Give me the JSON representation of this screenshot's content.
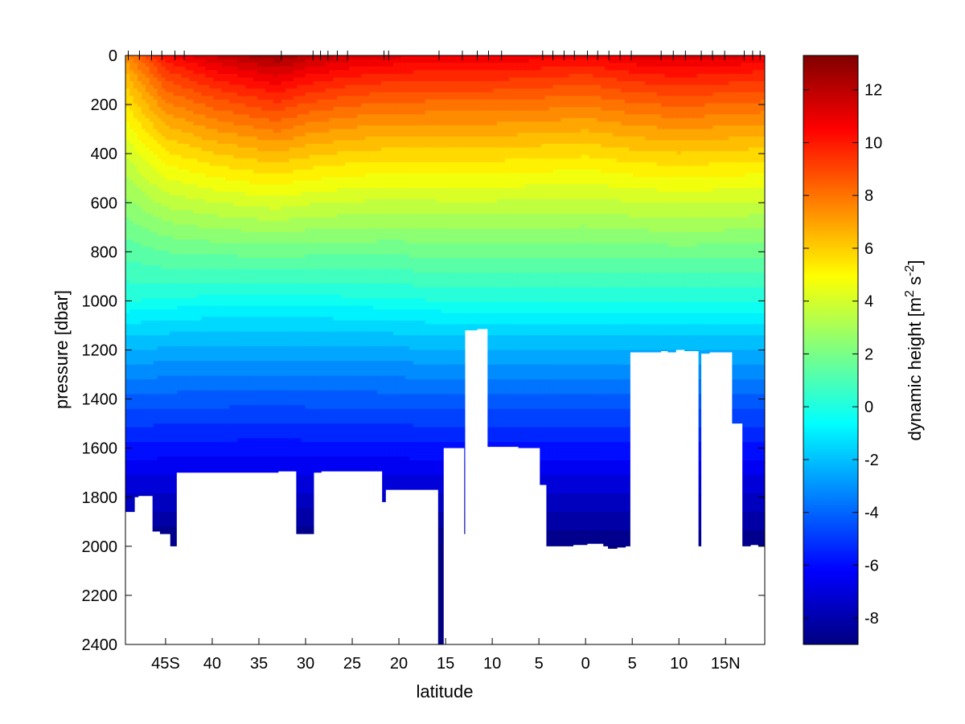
{
  "chart_data": {
    "type": "heatmap",
    "subtype": "filled-contour-section",
    "title": "",
    "xlabel": "latitude",
    "ylabel": "pressure [dbar]",
    "colorbar_label_prefix": "dynamic height [m",
    "colorbar_label_sup1": "2",
    "colorbar_label_mid": " s",
    "colorbar_label_sup2": "-2",
    "colorbar_label_suffix": "]",
    "colormap": "jet",
    "colormap_stops": [
      "#00008f",
      "#0000ff",
      "#00ffff",
      "#ffff00",
      "#ff0000",
      "#800000"
    ],
    "background_mask_color": "#ffffff",
    "x_signed_range": [
      -49.3,
      19.2
    ],
    "y_range": [
      0,
      2400
    ],
    "y_reversed": true,
    "clim": [
      -9,
      13.3
    ],
    "x_ticks": [
      {
        "value": -45,
        "label": "45S"
      },
      {
        "value": -40,
        "label": "40"
      },
      {
        "value": -35,
        "label": "35"
      },
      {
        "value": -30,
        "label": "30"
      },
      {
        "value": -25,
        "label": "25"
      },
      {
        "value": -20,
        "label": "20"
      },
      {
        "value": -15,
        "label": "15"
      },
      {
        "value": -10,
        "label": "10"
      },
      {
        "value": -5,
        "label": "5"
      },
      {
        "value": 0,
        "label": "0"
      },
      {
        "value": 5,
        "label": "5"
      },
      {
        "value": 10,
        "label": "10"
      },
      {
        "value": 15,
        "label": "15N"
      }
    ],
    "y_ticks": [
      {
        "value": 0,
        "label": "0"
      },
      {
        "value": 200,
        "label": "200"
      },
      {
        "value": 400,
        "label": "400"
      },
      {
        "value": 600,
        "label": "600"
      },
      {
        "value": 800,
        "label": "800"
      },
      {
        "value": 1000,
        "label": "1000"
      },
      {
        "value": 1200,
        "label": "1200"
      },
      {
        "value": 1400,
        "label": "1400"
      },
      {
        "value": 1600,
        "label": "1600"
      },
      {
        "value": 1800,
        "label": "1800"
      },
      {
        "value": 2000,
        "label": "2000"
      },
      {
        "value": 2200,
        "label": "2200"
      },
      {
        "value": 2400,
        "label": "2400"
      }
    ],
    "colorbar_ticks": [
      {
        "value": 12,
        "label": "12"
      },
      {
        "value": 10,
        "label": "10"
      },
      {
        "value": 8,
        "label": "8"
      },
      {
        "value": 6,
        "label": "6"
      },
      {
        "value": 4,
        "label": "4"
      },
      {
        "value": 2,
        "label": "2"
      },
      {
        "value": 0,
        "label": "0"
      },
      {
        "value": -2,
        "label": "-2"
      },
      {
        "value": -4,
        "label": "-4"
      },
      {
        "value": -6,
        "label": "-6"
      },
      {
        "value": -8,
        "label": "-8"
      }
    ],
    "station_latitudes": [
      -49,
      -47.8,
      -46.5,
      -45.4,
      -44,
      -43,
      -32.6,
      -29.2,
      -28.4,
      -27.6,
      -26.6,
      -25.5,
      -21.6,
      -21.1,
      -15.7,
      -13.2,
      -11.6,
      -10.4,
      -9,
      -4.6,
      -3.5,
      -2.3,
      -1.2,
      0.2,
      1.3,
      2.5,
      3.7,
      4.9,
      8.1,
      9.4,
      10.7,
      12.4,
      13.6,
      14.9,
      17,
      17.9,
      18.7
    ],
    "surface_anomaly": {
      "latitudes": [
        -49.3,
        -45,
        -40,
        -35,
        -33,
        -30,
        -25,
        -20,
        -15,
        -10,
        -5,
        0,
        5,
        10,
        15,
        19.2
      ],
      "values": [
        7.5,
        10.5,
        11.8,
        12.6,
        12.9,
        12.2,
        11.6,
        11.3,
        11.2,
        11.2,
        11,
        10.8,
        11.3,
        11.6,
        11.4,
        11.2
      ]
    },
    "zero_contour_depth": {
      "latitudes": [
        -49.3,
        -45,
        -40,
        -33,
        -25,
        -20,
        -15,
        -10,
        -5,
        0,
        5,
        10,
        15,
        19.2
      ],
      "values": [
        1000,
        985,
        975,
        970,
        980,
        985,
        1000,
        1000,
        1000,
        1000,
        1000,
        1000,
        1000,
        1000
      ]
    },
    "bottom_mask": {
      "latitudes": [
        -49.3,
        -48.3,
        -47.9,
        -46.4,
        -45.6,
        -44.5,
        -43.8,
        -43.1,
        -32.9,
        -31,
        -29.1,
        -28.3,
        -21.8,
        -21.4,
        -15.8,
        -15.2,
        -13,
        -12.9,
        -11.6,
        -10.5,
        -7.2,
        -4.9,
        -4.2,
        -3.4,
        -1.3,
        0.2,
        1.9,
        2.4,
        3.4,
        4.3,
        4.8,
        8.1,
        8.8,
        9.7,
        10.6,
        12.1,
        12.4,
        13.3,
        15.7,
        16.8,
        17.7,
        18.5,
        19.2
      ],
      "depths": [
        1860,
        1800,
        1795,
        1940,
        1950,
        2000,
        1700,
        1700,
        1695,
        1950,
        1700,
        1695,
        1820,
        1770,
        2400,
        1600,
        1950,
        1120,
        1115,
        1595,
        1600,
        1750,
        2000,
        2000,
        1995,
        1990,
        2000,
        2010,
        2005,
        2000,
        1210,
        1205,
        1210,
        1200,
        1205,
        2000,
        1215,
        1210,
        1500,
        2000,
        1995,
        2000,
        2000
      ]
    }
  }
}
